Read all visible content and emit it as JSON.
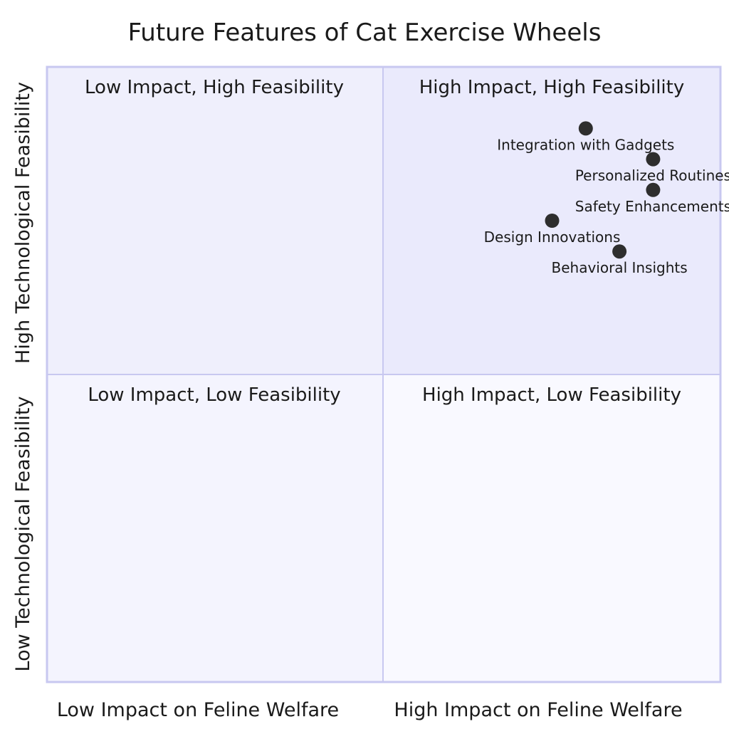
{
  "chart_data": {
    "type": "scatter",
    "title": "Future Features of Cat Exercise Wheels",
    "xlabel_low": "Low Impact on Feline Welfare",
    "xlabel_high": "High Impact on Feline Welfare",
    "ylabel_low": "Low Technological Feasibility",
    "ylabel_high": "High Technological Feasibility",
    "xlim": [
      0,
      1
    ],
    "ylim": [
      0,
      1
    ],
    "quadrants": {
      "top_left": "Low Impact, High Feasibility",
      "top_right": "High Impact, High Feasibility",
      "bottom_left": "Low Impact, Low Feasibility",
      "bottom_right": "High Impact, Low Feasibility"
    },
    "points": [
      {
        "label": "Integration with Gadgets",
        "x": 0.8,
        "y": 0.9
      },
      {
        "label": "Personalized Routines",
        "x": 0.9,
        "y": 0.85
      },
      {
        "label": "Safety Enhancements",
        "x": 0.9,
        "y": 0.8
      },
      {
        "label": "Design Innovations",
        "x": 0.75,
        "y": 0.75
      },
      {
        "label": "Behavioral Insights",
        "x": 0.85,
        "y": 0.7
      }
    ],
    "colors": {
      "quadrant_fill_top_right": "#eaeafc",
      "quadrant_fill_top_left": "#efeffc",
      "quadrant_fill_bottom_left": "#f4f4fe",
      "quadrant_fill_bottom_right": "#f9f9ff",
      "border": "#c8c8f0",
      "point": "#2e2e2e"
    }
  }
}
